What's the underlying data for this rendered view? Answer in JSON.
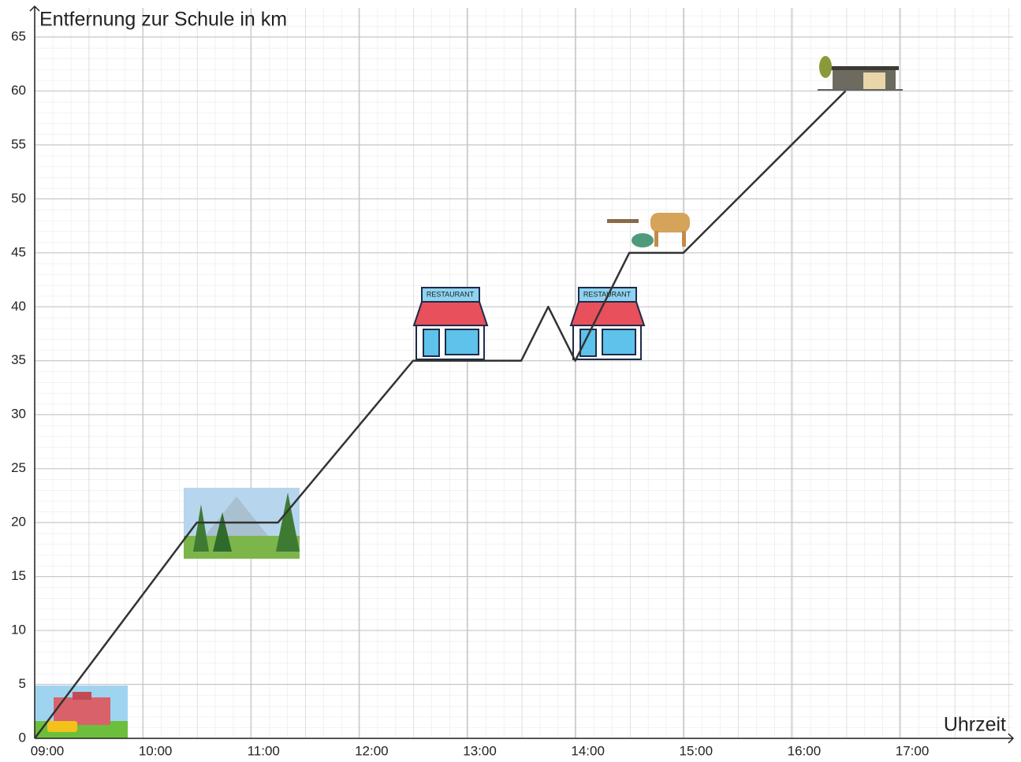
{
  "chart_data": {
    "type": "line",
    "y_axis_label": "Entfernung zur Schule in km",
    "x_axis_label": "Uhrzeit",
    "x": [
      9,
      10.5,
      11.25,
      12.5,
      13.5,
      13.75,
      14,
      14.5,
      15,
      16.5
    ],
    "series": [
      {
        "color": "#333333",
        "values": [
          0,
          20,
          20,
          35,
          35,
          40,
          35,
          45,
          45,
          60
        ]
      }
    ],
    "xlim": [
      9,
      18.05
    ],
    "ylim": [
      0,
      67.7
    ],
    "xticks": [
      {
        "value": 9,
        "label": "09:00"
      },
      {
        "value": 10,
        "label": "10:00"
      },
      {
        "value": 11,
        "label": "11:00"
      },
      {
        "value": 12,
        "label": "12:00"
      },
      {
        "value": 13,
        "label": "13:00"
      },
      {
        "value": 14,
        "label": "14:00"
      },
      {
        "value": 15,
        "label": "15:00"
      },
      {
        "value": 16,
        "label": "16:00"
      },
      {
        "value": 17,
        "label": "17:00"
      }
    ],
    "yticks": [
      0,
      5,
      10,
      15,
      20,
      25,
      30,
      35,
      40,
      45,
      50,
      55,
      60,
      65
    ],
    "grid": true,
    "annotations": [
      "RESTAURANT",
      "RESTAURANT"
    ]
  }
}
